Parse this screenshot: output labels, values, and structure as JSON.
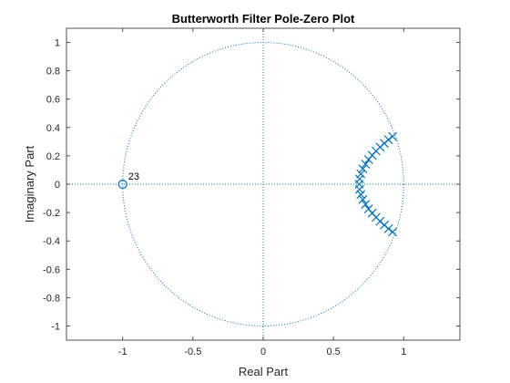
{
  "chart_data": {
    "type": "scatter",
    "title": "Butterworth Filter Pole-Zero Plot",
    "xlabel": "Real Part",
    "ylabel": "Imaginary Part",
    "xlim": [
      -1.4,
      1.4
    ],
    "ylim": [
      -1.1,
      1.1
    ],
    "xticks": [
      -1,
      -0.5,
      0,
      0.5,
      1
    ],
    "xtick_labels": [
      "-1",
      "-0.5",
      "0",
      "0.5",
      "1"
    ],
    "yticks": [
      1,
      0.8,
      0.6,
      0.4,
      0.2,
      0,
      -0.2,
      -0.4,
      -0.6,
      -0.8,
      -1
    ],
    "ytick_labels": [
      "1",
      "0.8",
      "0.6",
      "0.4",
      "0.2",
      "0",
      "-0.2",
      "-0.4",
      "-0.6",
      "-0.8",
      "-1"
    ],
    "grid": false,
    "legend": "none",
    "unit_circle": true,
    "colors": {
      "series": "#0072bd",
      "axes": "#262626"
    },
    "zeros": {
      "marker": "circle",
      "points": [
        {
          "x": -1,
          "y": 0
        }
      ],
      "multiplicity_label": "23"
    },
    "poles": {
      "marker": "x",
      "points": [
        {
          "x": 0.921,
          "y": 0.337
        },
        {
          "x": 0.892,
          "y": 0.314
        },
        {
          "x": 0.862,
          "y": 0.288
        },
        {
          "x": 0.832,
          "y": 0.262
        },
        {
          "x": 0.803,
          "y": 0.234
        },
        {
          "x": 0.776,
          "y": 0.204
        },
        {
          "x": 0.75,
          "y": 0.174
        },
        {
          "x": 0.728,
          "y": 0.142
        },
        {
          "x": 0.709,
          "y": 0.108
        },
        {
          "x": 0.695,
          "y": 0.073
        },
        {
          "x": 0.686,
          "y": 0.037
        },
        {
          "x": 0.683,
          "y": 0.0
        },
        {
          "x": 0.686,
          "y": -0.037
        },
        {
          "x": 0.695,
          "y": -0.073
        },
        {
          "x": 0.709,
          "y": -0.108
        },
        {
          "x": 0.728,
          "y": -0.142
        },
        {
          "x": 0.75,
          "y": -0.174
        },
        {
          "x": 0.776,
          "y": -0.204
        },
        {
          "x": 0.803,
          "y": -0.234
        },
        {
          "x": 0.832,
          "y": -0.262
        },
        {
          "x": 0.862,
          "y": -0.288
        },
        {
          "x": 0.892,
          "y": -0.314
        },
        {
          "x": 0.921,
          "y": -0.337
        }
      ]
    }
  }
}
